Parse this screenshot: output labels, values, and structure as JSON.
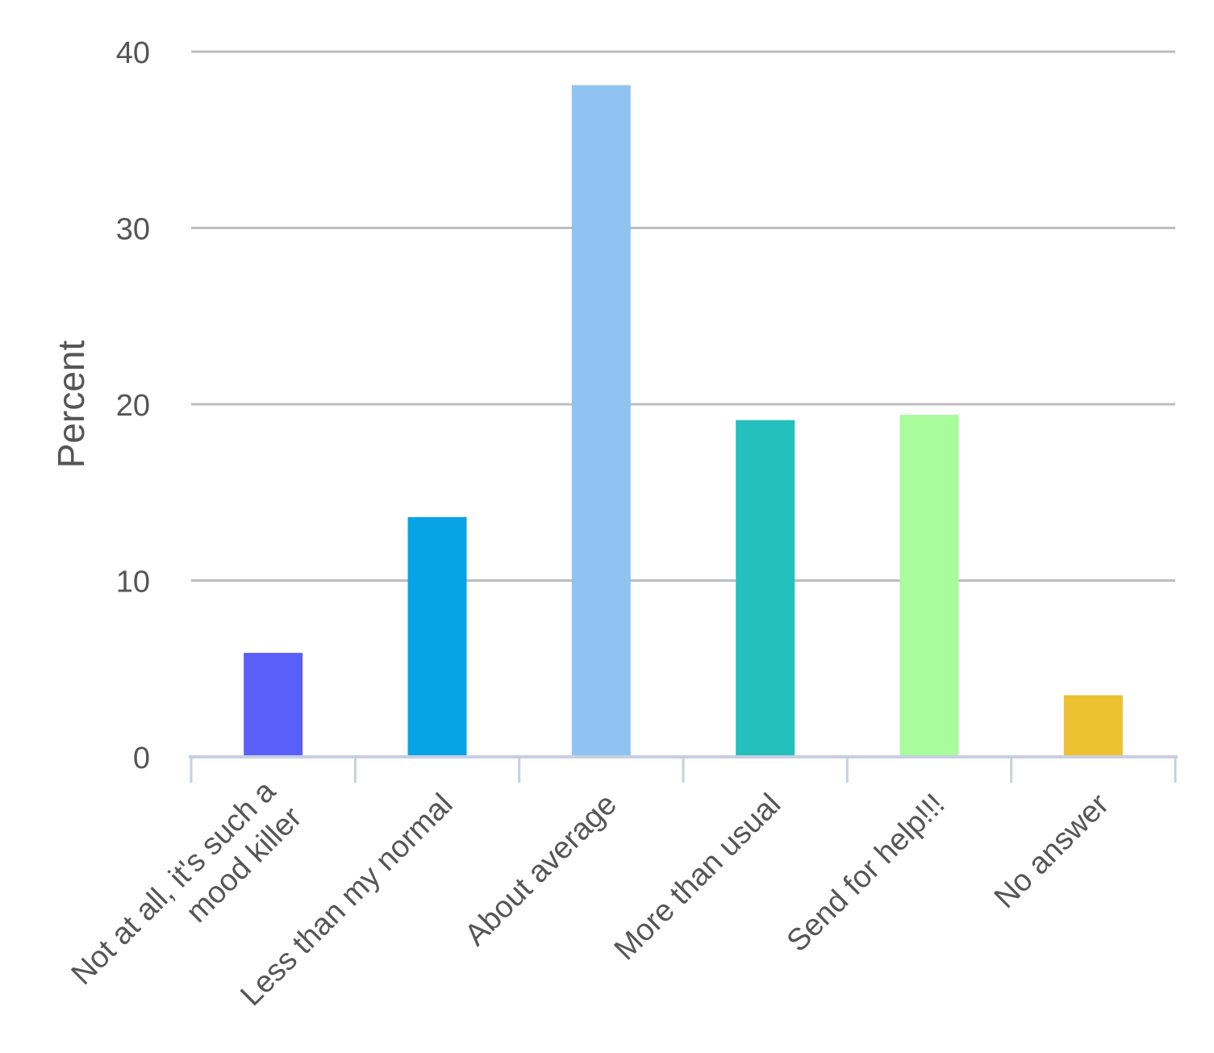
{
  "chart_data": {
    "type": "bar",
    "title": "",
    "xlabel": "",
    "ylabel": "Percent",
    "ylim": [
      0,
      40
    ],
    "yticks": [
      0,
      10,
      20,
      30,
      40
    ],
    "grid": true,
    "categories": [
      [
        "Not at all, it's such a",
        "mood killer"
      ],
      [
        "Less than my normal"
      ],
      [
        "About average"
      ],
      [
        "More than usual"
      ],
      [
        "Send for help!!!"
      ],
      [
        "No answer"
      ]
    ],
    "values": [
      5.9,
      13.6,
      38.1,
      19.1,
      19.4,
      3.5
    ],
    "colors": [
      "#5b5ffa",
      "#06a3e5",
      "#8fc4f2",
      "#24c0be",
      "#a8fc9c",
      "#ecc232"
    ]
  }
}
